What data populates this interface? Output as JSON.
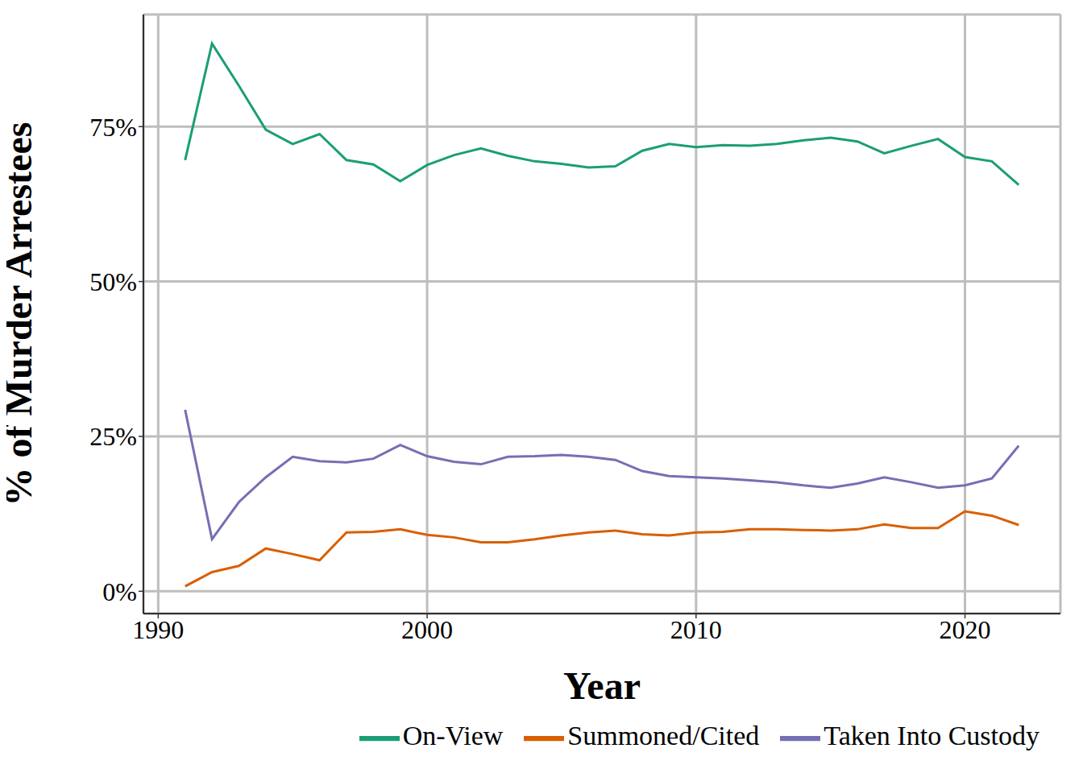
{
  "chart_data": {
    "type": "line",
    "x_label": "Year",
    "y_label": "% of Murder Arrestees",
    "x": [
      1991,
      1992,
      1993,
      1994,
      1995,
      1996,
      1997,
      1998,
      1999,
      2000,
      2001,
      2002,
      2003,
      2004,
      2005,
      2006,
      2007,
      2008,
      2009,
      2010,
      2011,
      2012,
      2013,
      2014,
      2015,
      2016,
      2017,
      2018,
      2019,
      2020,
      2021,
      2022
    ],
    "series": [
      {
        "name": "On-View",
        "color": "#1b9e77",
        "values": [
          69.6,
          88.4,
          81.6,
          74.5,
          72.2,
          73.8,
          69.6,
          68.9,
          66.2,
          68.8,
          70.4,
          71.5,
          70.3,
          69.4,
          69.0,
          68.4,
          68.6,
          71.1,
          72.2,
          71.7,
          72.0,
          71.9,
          72.2,
          72.8,
          73.2,
          72.6,
          70.7,
          71.9,
          73.0,
          70.1,
          69.4,
          65.6
        ]
      },
      {
        "name": "Summoned/Cited",
        "color": "#d95f02",
        "values": [
          0.8,
          3.1,
          4.1,
          6.9,
          6.0,
          5.0,
          9.5,
          9.6,
          10.0,
          9.1,
          8.7,
          7.9,
          7.9,
          8.4,
          9.0,
          9.5,
          9.8,
          9.2,
          9.0,
          9.5,
          9.6,
          10.0,
          10.0,
          9.9,
          9.8,
          10.0,
          10.8,
          10.2,
          10.2,
          12.9,
          12.2,
          10.7
        ]
      },
      {
        "name": "Taken Into Custody",
        "color": "#7570b3",
        "values": [
          29.3,
          8.4,
          14.4,
          18.4,
          21.7,
          21.0,
          20.8,
          21.4,
          23.6,
          21.8,
          20.9,
          20.5,
          21.7,
          21.8,
          22.0,
          21.7,
          21.2,
          19.4,
          18.6,
          18.4,
          18.2,
          17.9,
          17.6,
          17.1,
          16.7,
          17.4,
          18.4,
          17.6,
          16.7,
          17.1,
          18.2,
          23.5
        ]
      }
    ],
    "xlim": [
      1989.45,
      2023.55
    ],
    "xticks": [
      1990,
      2000,
      2010,
      2020
    ],
    "ylim": [
      -3.6,
      93.1
    ],
    "yticks": [
      {
        "value": 0,
        "label": "0%"
      },
      {
        "value": 25,
        "label": "25%"
      },
      {
        "value": 50,
        "label": "50%"
      },
      {
        "value": 75,
        "label": "75%"
      }
    ],
    "grid": true,
    "legend": "bottom"
  }
}
